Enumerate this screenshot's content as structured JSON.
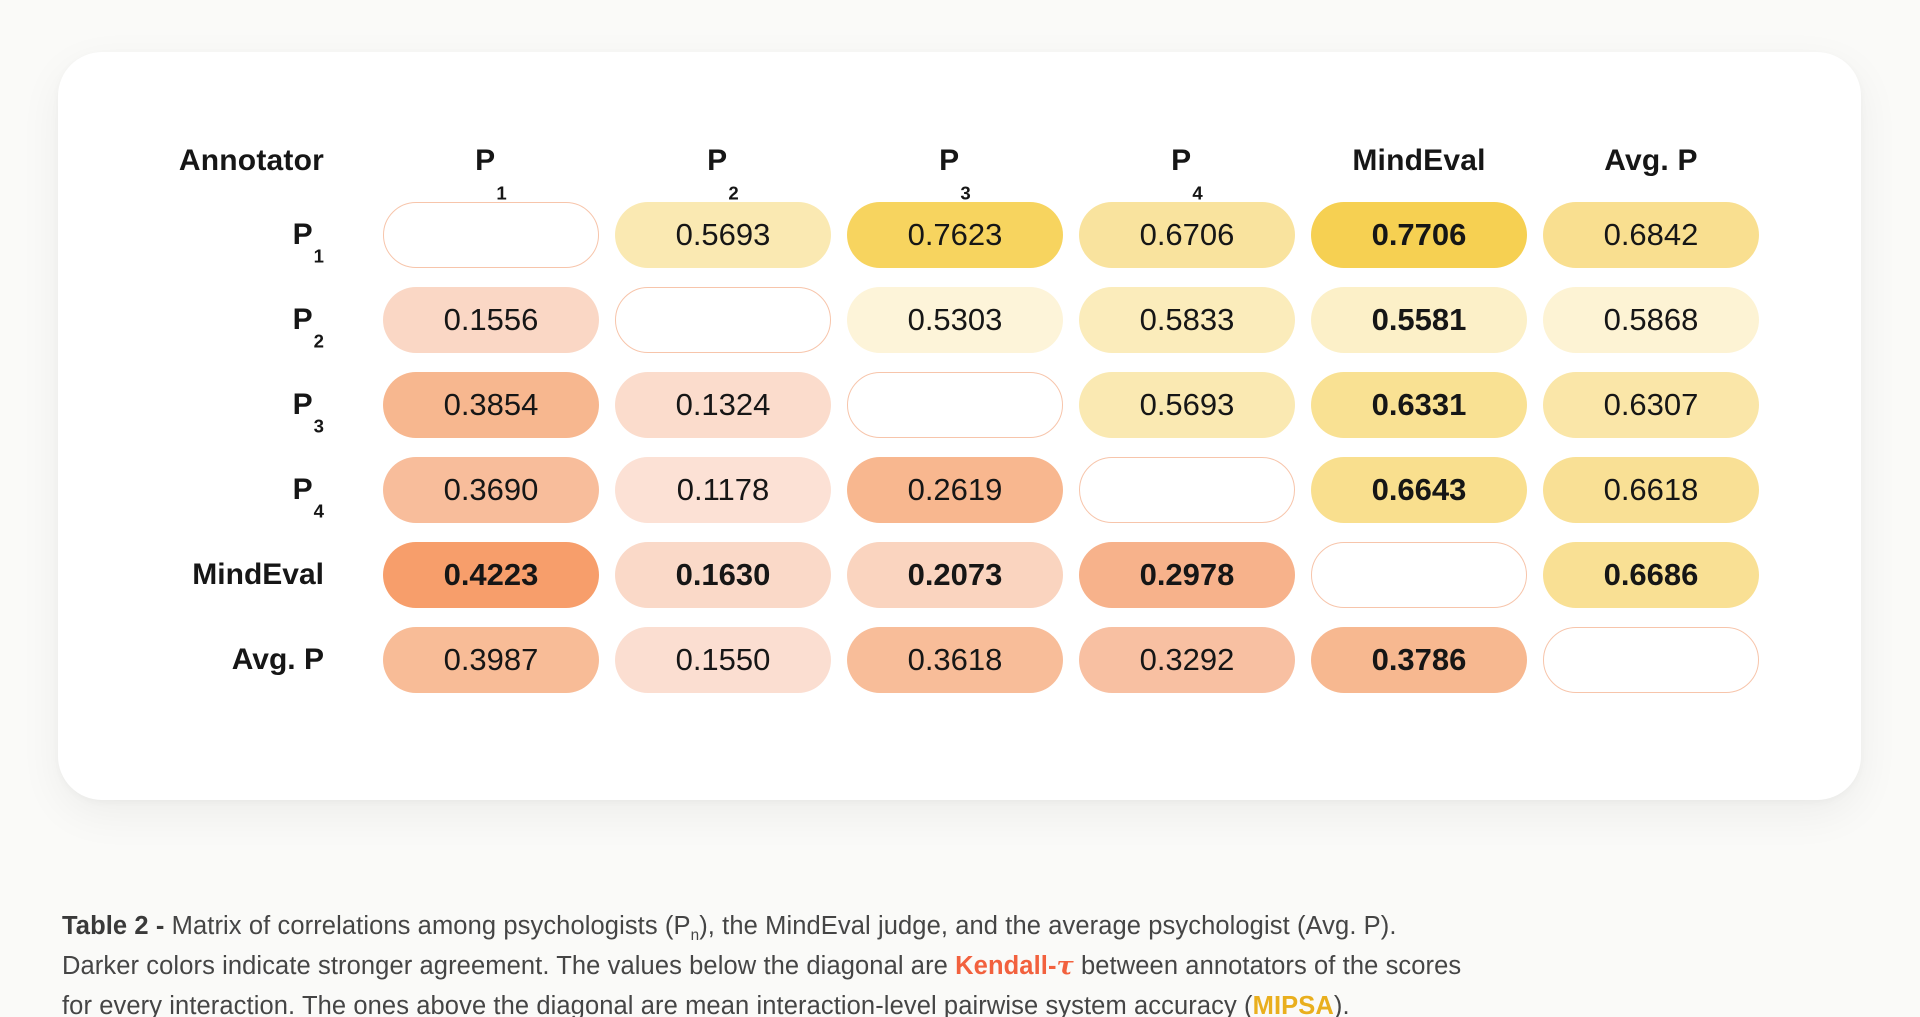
{
  "page": {
    "background_color": "#fafaf8",
    "card_color": "#ffffff",
    "diagonal_border_color": "#f7c5ab",
    "kendall_color": "#f2613e",
    "mipsa_color": "#e9af1e"
  },
  "table": {
    "corner_label": "Annotator",
    "columns": [
      {
        "key": "p1",
        "text": "P",
        "sub": "1"
      },
      {
        "key": "p2",
        "text": "P",
        "sub": "2"
      },
      {
        "key": "p3",
        "text": "P",
        "sub": "3"
      },
      {
        "key": "p4",
        "text": "P",
        "sub": "4"
      },
      {
        "key": "mindeval",
        "text": "MindEval",
        "sub": ""
      },
      {
        "key": "avgp",
        "text": "Avg. P",
        "sub": ""
      }
    ],
    "rows": [
      {
        "key": "p1",
        "label": {
          "text": "P",
          "sub": "1"
        },
        "cells": [
          {
            "type": "diagonal"
          },
          {
            "value": "0.5693",
            "bg": "#fae9b2",
            "bold": false
          },
          {
            "value": "0.7623",
            "bg": "#f7d45f",
            "bold": false
          },
          {
            "value": "0.6706",
            "bg": "#f9e39e",
            "bold": false
          },
          {
            "value": "0.7706",
            "bg": "#f6d052",
            "bold": true
          },
          {
            "value": "0.6842",
            "bg": "#f9df90",
            "bold": false
          }
        ]
      },
      {
        "key": "p2",
        "label": {
          "text": "P",
          "sub": "2"
        },
        "cells": [
          {
            "value": "0.1556",
            "bg": "#fad7c5",
            "bold": false
          },
          {
            "type": "diagonal"
          },
          {
            "value": "0.5303",
            "bg": "#fdf4d9",
            "bold": false
          },
          {
            "value": "0.5833",
            "bg": "#fbecbb",
            "bold": false
          },
          {
            "value": "0.5581",
            "bg": "#fcf0c8",
            "bold": true
          },
          {
            "value": "0.5868",
            "bg": "#fdf3d4",
            "bold": false
          }
        ]
      },
      {
        "key": "p3",
        "label": {
          "text": "P",
          "sub": "3"
        },
        "cells": [
          {
            "value": "0.3854",
            "bg": "#f7b78f",
            "bold": false
          },
          {
            "value": "0.1324",
            "bg": "#fbdccc",
            "bold": false
          },
          {
            "type": "diagonal"
          },
          {
            "value": "0.5693",
            "bg": "#fae9b2",
            "bold": false
          },
          {
            "value": "0.6331",
            "bg": "#f9e193",
            "bold": true
          },
          {
            "value": "0.6307",
            "bg": "#fae6a8",
            "bold": false
          }
        ]
      },
      {
        "key": "p4",
        "label": {
          "text": "P",
          "sub": "4"
        },
        "cells": [
          {
            "value": "0.3690",
            "bg": "#f8bd9b",
            "bold": false
          },
          {
            "value": "0.1178",
            "bg": "#fce1d5",
            "bold": false
          },
          {
            "value": "0.2619",
            "bg": "#f8b78f",
            "bold": false
          },
          {
            "type": "diagonal"
          },
          {
            "value": "0.6643",
            "bg": "#f9df8e",
            "bold": true
          },
          {
            "value": "0.6618",
            "bg": "#f9e095",
            "bold": false
          }
        ]
      },
      {
        "key": "mindeval",
        "label": {
          "text": "MindEval",
          "sub": ""
        },
        "cells": [
          {
            "value": "0.4223",
            "bg": "#f79e6b",
            "bold": true
          },
          {
            "value": "0.1630",
            "bg": "#fad9c8",
            "bold": true
          },
          {
            "value": "0.2073",
            "bg": "#fad4bf",
            "bold": true
          },
          {
            "value": "0.2978",
            "bg": "#f7b28b",
            "bold": true
          },
          {
            "type": "diagonal"
          },
          {
            "value": "0.6686",
            "bg": "#f9e094",
            "bold": true
          }
        ]
      },
      {
        "key": "avgp",
        "label": {
          "text": "Avg. P",
          "sub": ""
        },
        "cells": [
          {
            "value": "0.3987",
            "bg": "#f8bc97",
            "bold": false
          },
          {
            "value": "0.1550",
            "bg": "#fbded1",
            "bold": false
          },
          {
            "value": "0.3618",
            "bg": "#f8bd99",
            "bold": false
          },
          {
            "value": "0.3292",
            "bg": "#f8c0a2",
            "bold": false
          },
          {
            "value": "0.3786",
            "bg": "#f7b890",
            "bold": true
          },
          {
            "type": "diagonal"
          }
        ]
      }
    ]
  },
  "caption": {
    "line1": {
      "prefix": "Table 2 - ",
      "text_a": "Matrix of correlations among psychologists (P",
      "sub": "n",
      "text_b": "), the MindEval judge, and the average psychologist (Avg. P)."
    },
    "line2": {
      "text_a": "Darker colors indicate stronger agreement. The values below the diagonal are ",
      "kendall": "Kendall-",
      "tau": "τ",
      "text_b": " between annotators of the scores"
    },
    "line3": {
      "text_a": "for every interaction. The ones above the diagonal are mean interaction-level pairwise system accuracy (",
      "mipsa": "MIPSA",
      "text_b": ")."
    }
  },
  "chart_data": {
    "type": "heatmap",
    "title": "Table 2 - Matrix of correlations among psychologists (Pn), the MindEval judge, and the average psychologist (Avg. P)",
    "rows": [
      "P1",
      "P2",
      "P3",
      "P4",
      "MindEval",
      "Avg. P"
    ],
    "columns": [
      "P1",
      "P2",
      "P3",
      "P4",
      "MindEval",
      "Avg. P"
    ],
    "matrix": [
      [
        null,
        0.5693,
        0.7623,
        0.6706,
        0.7706,
        0.6842
      ],
      [
        0.1556,
        null,
        0.5303,
        0.5833,
        0.5581,
        0.5868
      ],
      [
        0.3854,
        0.1324,
        null,
        0.5693,
        0.6331,
        0.6307
      ],
      [
        0.369,
        0.1178,
        0.2619,
        null,
        0.6643,
        0.6618
      ],
      [
        0.4223,
        0.163,
        0.2073,
        0.2978,
        null,
        0.6686
      ],
      [
        0.3987,
        0.155,
        0.3618,
        0.3292,
        0.3786,
        null
      ]
    ],
    "below_diagonal_metric": "Kendall-τ between annotators of the scores for every interaction",
    "above_diagonal_metric": "mean interaction-level pairwise system accuracy (MIPSA)",
    "bold_cells": "entire MindEval row and entire MindEval column",
    "color_scale": "darker = stronger agreement; yellow hues above diagonal, orange hues below diagonal",
    "legend_position": "none",
    "grid": false
  }
}
